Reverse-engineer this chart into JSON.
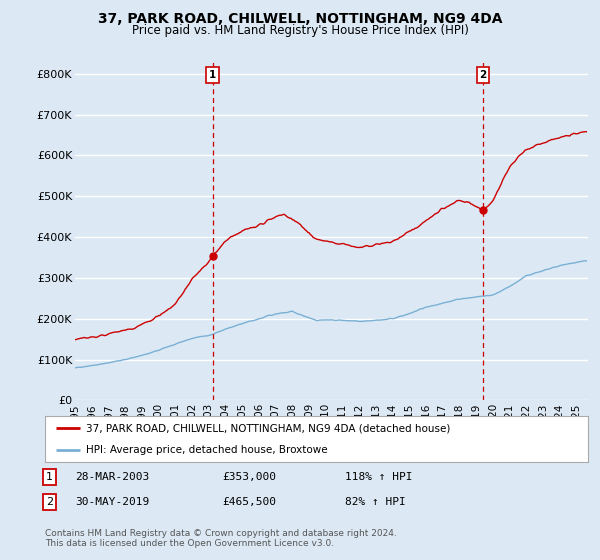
{
  "title": "37, PARK ROAD, CHILWELL, NOTTINGHAM, NG9 4DA",
  "subtitle": "Price paid vs. HM Land Registry's House Price Index (HPI)",
  "bg_color": "#dce9f5",
  "plot_bg_color": "#dce9f5",
  "red_color": "#cc0000",
  "blue_color": "#7ab0d4",
  "grid_color": "#ffffff",
  "yticks": [
    0,
    100000,
    200000,
    300000,
    400000,
    500000,
    600000,
    700000,
    800000
  ],
  "ytick_labels": [
    "£0",
    "£100K",
    "£200K",
    "£300K",
    "£400K",
    "£500K",
    "£600K",
    "£700K",
    "£800K"
  ],
  "ylim": [
    0,
    830000
  ],
  "xlim_start": 1995.0,
  "xlim_end": 2025.7,
  "xtick_years": [
    1995,
    1996,
    1997,
    1998,
    1999,
    2000,
    2001,
    2002,
    2003,
    2004,
    2005,
    2006,
    2007,
    2008,
    2009,
    2010,
    2011,
    2012,
    2013,
    2014,
    2015,
    2016,
    2017,
    2018,
    2019,
    2020,
    2021,
    2022,
    2023,
    2024,
    2025
  ],
  "sale1_x": 2003.24,
  "sale1_y": 353000,
  "sale1_label": "1",
  "sale2_x": 2019.42,
  "sale2_y": 465500,
  "sale2_label": "2",
  "legend_line1": "37, PARK ROAD, CHILWELL, NOTTINGHAM, NG9 4DA (detached house)",
  "legend_line2": "HPI: Average price, detached house, Broxtowe",
  "footnote_row1_num": "1",
  "footnote_row1_date": "28-MAR-2003",
  "footnote_row1_price": "£353,000",
  "footnote_row1_hpi": "118% ↑ HPI",
  "footnote_row2_num": "2",
  "footnote_row2_date": "30-MAY-2019",
  "footnote_row2_price": "£465,500",
  "footnote_row2_hpi": "82% ↑ HPI",
  "copyright_text": "Contains HM Land Registry data © Crown copyright and database right 2024.\nThis data is licensed under the Open Government Licence v3.0.",
  "dashed_line_color": "#cc0000"
}
